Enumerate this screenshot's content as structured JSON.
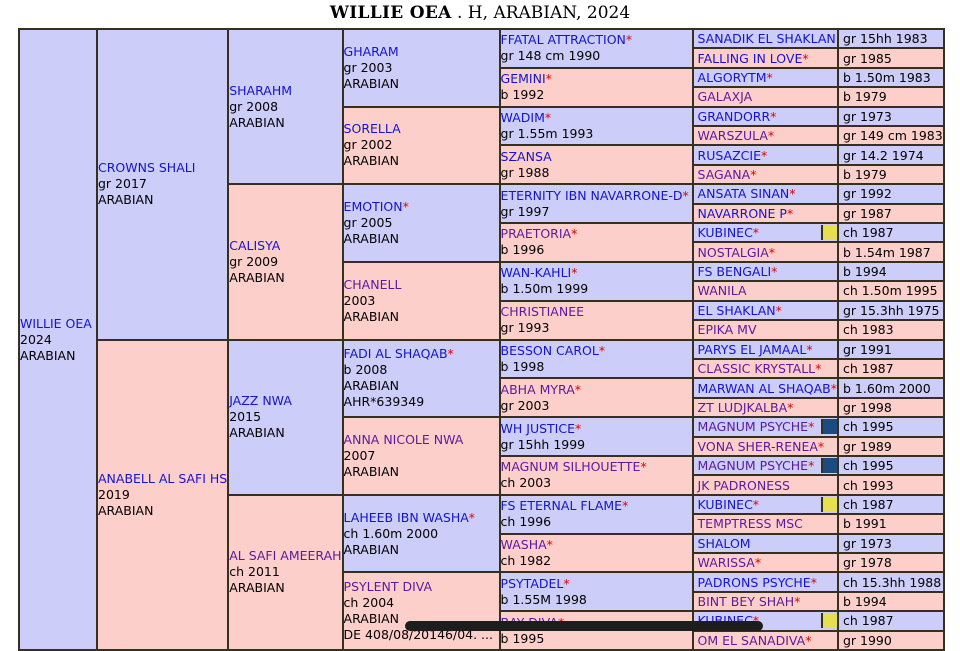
{
  "title": {
    "bold": "WILLIE OEA",
    "rest": " . H, ARABIAN, 2024"
  },
  "colors": {
    "male_bg": "#cdcdfa",
    "female_bg": "#fdcfca",
    "border": "#35301f",
    "link_blue": "#1414cf",
    "visited_purple": "#5a1a9e",
    "asterisk_red": "#e00000",
    "swatch_yellow": "#e6e050",
    "swatch_navy": "#1b4b80",
    "scrollbar_bar": "#1d1d1d"
  },
  "pedigree": {
    "rows": 32,
    "generations": [
      {
        "id": "gen1",
        "span": 32,
        "type": "block",
        "cells": [
          {
            "name": "WILLIE OEA",
            "sex": "m",
            "lines": [
              "2024",
              "ARABIAN"
            ]
          }
        ]
      },
      {
        "id": "gen2",
        "span": 16,
        "type": "block",
        "cells": [
          {
            "name": "CROWNS SHALI",
            "sex": "m",
            "lines": [
              "gr 2017",
              "ARABIAN"
            ]
          },
          {
            "name": "ANABELL AL SAFI HS",
            "sex": "f",
            "lines": [
              "2019",
              "ARABIAN"
            ]
          }
        ]
      },
      {
        "id": "gen3",
        "span": 8,
        "type": "block",
        "cells": [
          {
            "name": "SHARAHM",
            "sex": "m",
            "lines": [
              "gr 2008",
              "ARABIAN"
            ]
          },
          {
            "name": "CALISYA",
            "sex": "f",
            "lines": [
              "gr 2009",
              "ARABIAN"
            ]
          },
          {
            "name": "JAZZ NWA",
            "sex": "m",
            "lines": [
              "2015",
              "ARABIAN"
            ]
          },
          {
            "name": "AL SAFI AMEERAH",
            "sex": "f",
            "visited": true,
            "lines": [
              "ch 2011",
              "ARABIAN"
            ]
          }
        ]
      },
      {
        "id": "gen4",
        "span": 4,
        "type": "block",
        "cells": [
          {
            "name": "GHARAM",
            "sex": "m",
            "lines": [
              "gr 2003",
              "ARABIAN"
            ]
          },
          {
            "name": "SORELLA",
            "sex": "f",
            "lines": [
              "gr 2002",
              "ARABIAN"
            ]
          },
          {
            "name": "EMOTION",
            "star": true,
            "sex": "m",
            "lines": [
              "gr 2005",
              "ARABIAN"
            ]
          },
          {
            "name": "CHANELL",
            "sex": "f",
            "visited": true,
            "lines": [
              "2003",
              "ARABIAN"
            ]
          },
          {
            "name": "FADI AL SHAQAB",
            "star": true,
            "sex": "m",
            "lines": [
              "b 2008",
              "ARABIAN",
              "AHR*639349"
            ]
          },
          {
            "name": "ANNA NICOLE NWA",
            "sex": "f",
            "visited": true,
            "lines": [
              "2007",
              "ARABIAN"
            ]
          },
          {
            "name": "LAHEEB IBN WASHA",
            "star": true,
            "sex": "m",
            "lines": [
              "ch 1.60m 2000",
              "ARABIAN"
            ]
          },
          {
            "name": "PSYLENT DIVA",
            "sex": "f",
            "visited": true,
            "lines": [
              "ch 2004",
              "ARABIAN",
              "DE 408/08/20146/04. ..."
            ]
          }
        ]
      },
      {
        "id": "gen5",
        "span": 2,
        "type": "block",
        "cells": [
          {
            "name": "FFATAL ATTRACTION",
            "star": true,
            "sex": "m",
            "lines": [
              "gr 148 cm 1990"
            ]
          },
          {
            "name": "GEMINI",
            "star": true,
            "sex": "f",
            "lines": [
              "b 1992"
            ]
          },
          {
            "name": "WADIM",
            "star": true,
            "sex": "m",
            "lines": [
              "gr 1.55m 1993"
            ]
          },
          {
            "name": "SZANSA",
            "sex": "f",
            "lines": [
              "gr 1988"
            ]
          },
          {
            "name": "ETERNITY IBN NAVARRONE-D",
            "star": true,
            "sex": "m",
            "lines": [
              "gr 1997"
            ]
          },
          {
            "name": "PRAETORIA",
            "star": true,
            "sex": "f",
            "visited": true,
            "lines": [
              "b 1996"
            ]
          },
          {
            "name": "WAN-KAHLI",
            "star": true,
            "sex": "m",
            "lines": [
              "b 1.50m 1999"
            ]
          },
          {
            "name": "CHRISTIANEE",
            "sex": "f",
            "visited": true,
            "lines": [
              "gr 1993"
            ]
          },
          {
            "name": "BESSON CAROL",
            "star": true,
            "sex": "m",
            "lines": [
              "b 1998"
            ]
          },
          {
            "name": "ABHA MYRA",
            "star": true,
            "sex": "f",
            "visited": true,
            "lines": [
              "gr 2003"
            ]
          },
          {
            "name": "WH JUSTICE",
            "star": true,
            "sex": "m",
            "lines": [
              "gr 15hh 1999"
            ]
          },
          {
            "name": "MAGNUM SILHOUETTE",
            "star": true,
            "sex": "f",
            "visited": true,
            "lines": [
              "ch 2003"
            ]
          },
          {
            "name": "FS ETERNAL FLAME",
            "star": true,
            "sex": "m",
            "lines": [
              "ch 1996"
            ]
          },
          {
            "name": "WASHA",
            "star": true,
            "sex": "f",
            "visited": true,
            "lines": [
              "ch 1982"
            ]
          },
          {
            "name": "PSYTADEL",
            "star": true,
            "sex": "m",
            "lines": [
              "b 1.55M 1998"
            ]
          },
          {
            "name": "BAY DIVA",
            "star": true,
            "sex": "f",
            "visited": true,
            "lines": [
              "b 1995"
            ]
          }
        ]
      },
      {
        "id": "gen6",
        "span": 1,
        "type": "pair",
        "cells": [
          {
            "name": "SANADIK EL SHAKLAN",
            "sex": "m",
            "detail": "gr 15hh 1983"
          },
          {
            "name": "FALLING IN LOVE",
            "star": true,
            "sex": "f",
            "detail": "gr 1985"
          },
          {
            "name": "ALGORYTM",
            "star": true,
            "sex": "m",
            "detail": "b 1.50m 1983"
          },
          {
            "name": "GALAXJA",
            "sex": "f",
            "visited": true,
            "detail": "b 1979"
          },
          {
            "name": "GRANDORR",
            "star": true,
            "sex": "m",
            "detail": "gr 1973"
          },
          {
            "name": "WARSZULA",
            "star": true,
            "sex": "f",
            "visited": true,
            "detail": "gr 149 cm 1983"
          },
          {
            "name": "RUSAZCIE",
            "star": true,
            "sex": "m",
            "detail": "gr 14.2 1974"
          },
          {
            "name": "SAGANA",
            "star": true,
            "sex": "f",
            "visited": true,
            "detail": "b 1979"
          },
          {
            "name": "ANSATA SINAN",
            "star": true,
            "sex": "m",
            "detail": "gr 1992"
          },
          {
            "name": "NAVARRONE P",
            "star": true,
            "sex": "f",
            "detail": "gr 1987"
          },
          {
            "name": "KUBINEC",
            "star": true,
            "sex": "m",
            "swatch": "yellow",
            "detail": "ch 1987"
          },
          {
            "name": "NOSTALGIA",
            "star": true,
            "sex": "f",
            "visited": true,
            "detail": "b 1.54m 1987"
          },
          {
            "name": "FS BENGALI",
            "star": true,
            "sex": "m",
            "detail": "b 1994"
          },
          {
            "name": "WANILA",
            "sex": "f",
            "visited": true,
            "detail": "ch 1.50m 1995"
          },
          {
            "name": "EL SHAKLAN",
            "star": true,
            "sex": "m",
            "detail": "gr 15.3hh 1975"
          },
          {
            "name": "EPIKA MV",
            "sex": "f",
            "visited": true,
            "detail": "ch 1983"
          },
          {
            "name": "PARYS EL JAMAAL",
            "star": true,
            "sex": "m",
            "detail": "gr 1991"
          },
          {
            "name": "CLASSIC KRYSTALL",
            "star": true,
            "sex": "f",
            "visited": true,
            "detail": "ch 1987"
          },
          {
            "name": "MARWAN AL SHAQAB",
            "star": true,
            "sex": "m",
            "detail": "b 1.60m 2000"
          },
          {
            "name": "ZT LUDJKALBA",
            "star": true,
            "sex": "f",
            "visited": true,
            "detail": "gr 1998"
          },
          {
            "name": "MAGNUM PSYCHE",
            "star": true,
            "sex": "m",
            "visited": true,
            "swatch": "navy",
            "detail": "ch 1995"
          },
          {
            "name": "VONA SHER-RENEA",
            "star": true,
            "sex": "f",
            "visited": true,
            "detail": "gr 1989"
          },
          {
            "name": "MAGNUM PSYCHE",
            "star": true,
            "sex": "m",
            "visited": true,
            "swatch": "navy",
            "detail": "ch 1995"
          },
          {
            "name": "JK PADRONESS",
            "sex": "f",
            "visited": true,
            "detail": "ch 1993"
          },
          {
            "name": "KUBINEC",
            "star": true,
            "sex": "m",
            "swatch": "yellow",
            "detail": "ch 1987"
          },
          {
            "name": "TEMPTRESS MSC",
            "sex": "f",
            "visited": true,
            "detail": "b 1991"
          },
          {
            "name": "SHALOM",
            "sex": "m",
            "detail": "gr 1973"
          },
          {
            "name": "WARISSA",
            "star": true,
            "sex": "f",
            "visited": true,
            "detail": "gr 1978"
          },
          {
            "name": "PADRONS PSYCHE",
            "star": true,
            "sex": "m",
            "detail": "ch 15.3hh 1988"
          },
          {
            "name": "BINT BEY SHAH",
            "star": true,
            "sex": "f",
            "visited": true,
            "detail": "b 1994"
          },
          {
            "name": "KUBINEC",
            "star": true,
            "sex": "m",
            "swatch": "yellow",
            "detail": "ch 1987"
          },
          {
            "name": "OM EL SANADIVA",
            "star": true,
            "sex": "f",
            "visited": true,
            "detail": "gr 1990"
          }
        ]
      }
    ]
  }
}
